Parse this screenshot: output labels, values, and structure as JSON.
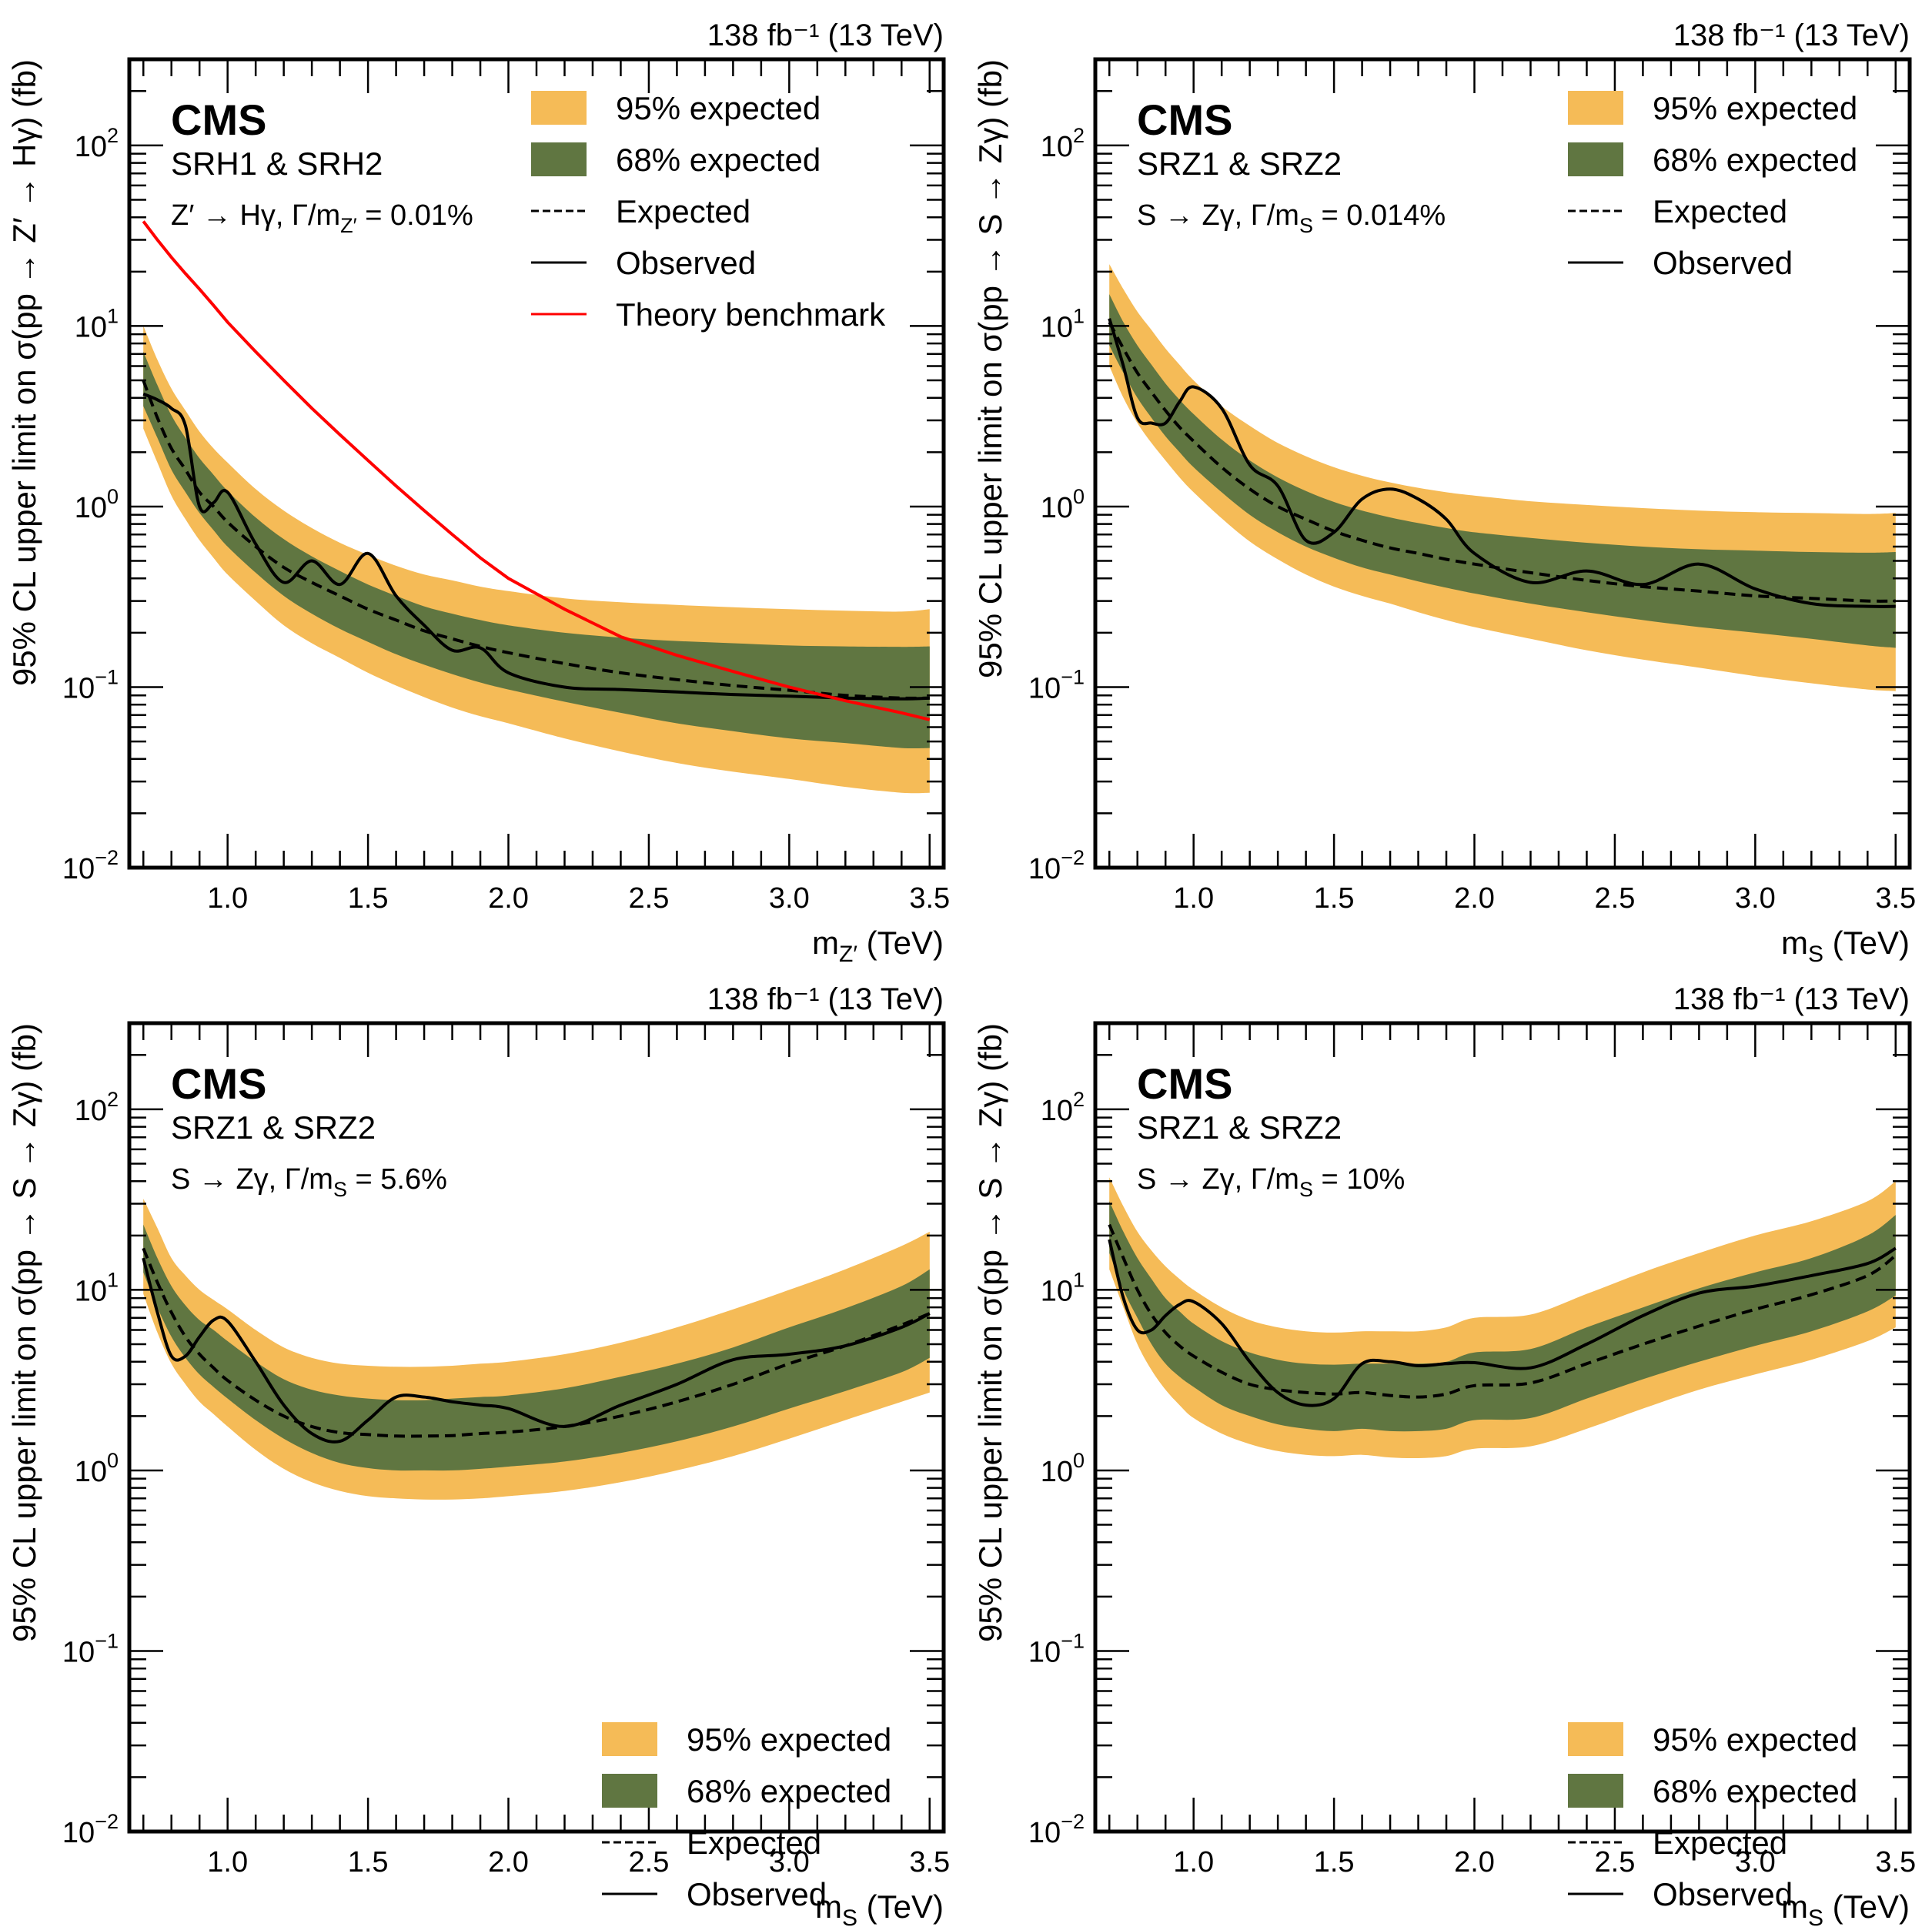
{
  "figure": {
    "colors": {
      "band95": "#F5BB57",
      "band68": "#607641",
      "expected": "#000000",
      "observed": "#000000",
      "theory": "#FF0000"
    }
  },
  "chart_data": [
    {
      "id": "p1",
      "type": "line",
      "title": "CMS",
      "lumi_label": "138 fb⁻¹ (13 TeV)",
      "subtitle": "SRH1 & SRH2",
      "process_label": "Z′ → Hγ,  Γ/m_Z′ = 0.01%",
      "process_parts": {
        "pre": "Z′ → Hγ,  Γ/m",
        "sub": "Z′",
        "post": " = 0.01%"
      },
      "xlabel": {
        "main": "m",
        "sub": "Z′",
        "unit": " (TeV)"
      },
      "ylabel": "95% CL upper limit on σ(pp → Z′ → Hγ) (fb)",
      "xlim": [
        0.65,
        3.55
      ],
      "ylim": [
        0.01,
        300
      ],
      "yscale": "log",
      "xticks": [
        "1.0",
        "1.5",
        "2.0",
        "2.5",
        "3.0",
        "3.5"
      ],
      "yticks": [
        {
          "base": "10",
          "exp": "−2"
        },
        {
          "base": "10",
          "exp": "−1"
        },
        {
          "base": "10",
          "exp": "0"
        },
        {
          "base": "10",
          "exp": "1"
        },
        {
          "base": "10",
          "exp": "2"
        }
      ],
      "legend_position": "top-right",
      "legend": [
        "95% expected",
        "68% expected",
        "Expected",
        "Observed",
        "Theory benchmark"
      ],
      "x": [
        0.7,
        0.75,
        0.8,
        0.85,
        0.9,
        0.95,
        1.0,
        1.1,
        1.2,
        1.3,
        1.4,
        1.5,
        1.6,
        1.7,
        1.8,
        1.9,
        2.0,
        2.2,
        2.4,
        2.6,
        2.8,
        3.0,
        3.2,
        3.4,
        3.5
      ],
      "series": [
        {
          "name": "95% upper",
          "values": [
            10,
            6.5,
            4.5,
            3.4,
            2.6,
            2.1,
            1.75,
            1.25,
            0.95,
            0.76,
            0.63,
            0.54,
            0.47,
            0.42,
            0.39,
            0.36,
            0.34,
            0.31,
            0.295,
            0.285,
            0.277,
            0.27,
            0.265,
            0.262,
            0.27
          ]
        },
        {
          "name": "68% upper",
          "values": [
            7.2,
            4.7,
            3.2,
            2.4,
            1.85,
            1.5,
            1.22,
            0.87,
            0.66,
            0.53,
            0.44,
            0.37,
            0.32,
            0.28,
            0.255,
            0.235,
            0.22,
            0.2,
            0.188,
            0.18,
            0.175,
            0.17,
            0.168,
            0.167,
            0.168
          ]
        },
        {
          "name": "68% lower",
          "values": [
            3.6,
            2.4,
            1.6,
            1.2,
            0.92,
            0.74,
            0.6,
            0.43,
            0.32,
            0.255,
            0.21,
            0.178,
            0.152,
            0.133,
            0.118,
            0.106,
            0.097,
            0.083,
            0.072,
            0.063,
            0.057,
            0.052,
            0.049,
            0.046,
            0.046
          ]
        },
        {
          "name": "95% lower",
          "values": [
            2.7,
            1.75,
            1.15,
            0.85,
            0.65,
            0.52,
            0.42,
            0.3,
            0.22,
            0.175,
            0.145,
            0.12,
            0.102,
            0.088,
            0.077,
            0.069,
            0.063,
            0.052,
            0.044,
            0.038,
            0.034,
            0.031,
            0.028,
            0.026,
            0.026
          ]
        },
        {
          "name": "Expected",
          "values": [
            5.0,
            3.1,
            2.1,
            1.6,
            1.2,
            1.0,
            0.82,
            0.6,
            0.46,
            0.38,
            0.32,
            0.27,
            0.235,
            0.205,
            0.185,
            0.168,
            0.155,
            0.135,
            0.12,
            0.11,
            0.102,
            0.096,
            0.09,
            0.087,
            0.087
          ]
        },
        {
          "name": "Observed",
          "values": [
            4.2,
            3.9,
            3.5,
            2.8,
            1.0,
            1.05,
            1.2,
            0.62,
            0.38,
            0.5,
            0.37,
            0.55,
            0.32,
            0.22,
            0.16,
            0.165,
            0.12,
            0.1,
            0.097,
            0.094,
            0.091,
            0.089,
            0.087,
            0.086,
            0.087
          ]
        },
        {
          "name": "Theory benchmark",
          "values": [
            38,
            30,
            24,
            19.5,
            16,
            13,
            10.5,
            7.2,
            5.0,
            3.5,
            2.5,
            1.8,
            1.3,
            0.95,
            0.7,
            0.52,
            0.4,
            0.27,
            0.19,
            0.15,
            0.122,
            0.1,
            0.084,
            0.072,
            0.066
          ]
        }
      ]
    },
    {
      "id": "p2",
      "type": "line",
      "title": "CMS",
      "lumi_label": "138 fb⁻¹ (13 TeV)",
      "subtitle": "SRZ1 & SRZ2",
      "process_label": "S → Zγ,  Γ/m_S = 0.014%",
      "process_parts": {
        "pre": "S → Zγ,  Γ/m",
        "sub": "S",
        "post": " = 0.014%"
      },
      "xlabel": {
        "main": "m",
        "sub": "S",
        "unit": " (TeV)"
      },
      "ylabel": "95% CL upper limit on σ(pp → S → Zγ) (fb)",
      "xlim": [
        0.65,
        3.55
      ],
      "ylim": [
        0.01,
        300
      ],
      "yscale": "log",
      "xticks": [
        "1.0",
        "1.5",
        "2.0",
        "2.5",
        "3.0",
        "3.5"
      ],
      "yticks": [
        {
          "base": "10",
          "exp": "−2"
        },
        {
          "base": "10",
          "exp": "−1"
        },
        {
          "base": "10",
          "exp": "0"
        },
        {
          "base": "10",
          "exp": "1"
        },
        {
          "base": "10",
          "exp": "2"
        }
      ],
      "legend_position": "top-right",
      "legend": [
        "95% expected",
        "68% expected",
        "Expected",
        "Observed"
      ],
      "x": [
        0.7,
        0.75,
        0.8,
        0.85,
        0.9,
        0.95,
        1.0,
        1.1,
        1.2,
        1.3,
        1.4,
        1.5,
        1.6,
        1.7,
        1.8,
        1.9,
        2.0,
        2.2,
        2.4,
        2.6,
        2.8,
        3.0,
        3.2,
        3.4,
        3.5
      ],
      "series": [
        {
          "name": "95% upper",
          "values": [
            22,
            16,
            12,
            9.5,
            7.5,
            6.1,
            5.0,
            3.6,
            2.8,
            2.25,
            1.9,
            1.65,
            1.48,
            1.36,
            1.27,
            1.2,
            1.15,
            1.07,
            1.02,
            0.98,
            0.95,
            0.93,
            0.92,
            0.91,
            0.92
          ]
        },
        {
          "name": "68% upper",
          "values": [
            15,
            10.5,
            7.8,
            6.1,
            4.8,
            3.9,
            3.25,
            2.35,
            1.8,
            1.45,
            1.22,
            1.06,
            0.95,
            0.87,
            0.81,
            0.76,
            0.72,
            0.67,
            0.63,
            0.6,
            0.58,
            0.57,
            0.56,
            0.555,
            0.56
          ]
        },
        {
          "name": "68% lower",
          "values": [
            7.8,
            5.5,
            4.0,
            3.1,
            2.45,
            2.0,
            1.65,
            1.2,
            0.9,
            0.72,
            0.6,
            0.52,
            0.46,
            0.42,
            0.385,
            0.355,
            0.33,
            0.29,
            0.26,
            0.235,
            0.215,
            0.2,
            0.185,
            0.17,
            0.165
          ]
        },
        {
          "name": "95% lower",
          "values": [
            6.0,
            4.0,
            2.9,
            2.25,
            1.8,
            1.45,
            1.2,
            0.86,
            0.64,
            0.51,
            0.42,
            0.36,
            0.32,
            0.29,
            0.26,
            0.235,
            0.215,
            0.185,
            0.16,
            0.142,
            0.128,
            0.115,
            0.105,
            0.097,
            0.095
          ]
        },
        {
          "name": "Expected",
          "values": [
            10.5,
            7.5,
            5.5,
            4.3,
            3.4,
            2.75,
            2.3,
            1.65,
            1.25,
            1.0,
            0.85,
            0.73,
            0.65,
            0.59,
            0.55,
            0.51,
            0.48,
            0.43,
            0.39,
            0.36,
            0.34,
            0.32,
            0.31,
            0.3,
            0.3
          ]
        },
        {
          "name": "Observed",
          "values": [
            11,
            6.0,
            3.1,
            2.9,
            2.9,
            3.8,
            4.6,
            3.5,
            1.7,
            1.3,
            0.65,
            0.72,
            1.1,
            1.25,
            1.1,
            0.85,
            0.55,
            0.38,
            0.44,
            0.37,
            0.48,
            0.35,
            0.29,
            0.28,
            0.28
          ]
        }
      ]
    },
    {
      "id": "p3",
      "type": "line",
      "title": "CMS",
      "lumi_label": "138 fb⁻¹ (13 TeV)",
      "subtitle": "SRZ1 & SRZ2",
      "process_label": "S → Zγ,  Γ/m_S = 5.6%",
      "process_parts": {
        "pre": "S → Zγ,  Γ/m",
        "sub": "S",
        "post": " = 5.6%"
      },
      "xlabel": {
        "main": "m",
        "sub": "S",
        "unit": " (TeV)"
      },
      "ylabel": "95% CL upper limit on σ(pp → S → Zγ) (fb)",
      "xlim": [
        0.65,
        3.55
      ],
      "ylim": [
        0.01,
        300
      ],
      "yscale": "log",
      "xticks": [
        "1.0",
        "1.5",
        "2.0",
        "2.5",
        "3.0",
        "3.5"
      ],
      "yticks": [
        {
          "base": "10",
          "exp": "−2"
        },
        {
          "base": "10",
          "exp": "−1"
        },
        {
          "base": "10",
          "exp": "0"
        },
        {
          "base": "10",
          "exp": "1"
        },
        {
          "base": "10",
          "exp": "2"
        }
      ],
      "legend_position": "bottom-right",
      "legend": [
        "95% expected",
        "68% expected",
        "Expected",
        "Observed"
      ],
      "x": [
        0.7,
        0.75,
        0.8,
        0.85,
        0.9,
        0.95,
        1.0,
        1.1,
        1.2,
        1.3,
        1.4,
        1.5,
        1.6,
        1.7,
        1.8,
        1.9,
        2.0,
        2.2,
        2.4,
        2.6,
        2.8,
        3.0,
        3.2,
        3.4,
        3.5
      ],
      "series": [
        {
          "name": "95% upper",
          "values": [
            32,
            22,
            15,
            12,
            10,
            8.8,
            7.8,
            6.0,
            4.8,
            4.2,
            3.9,
            3.8,
            3.75,
            3.75,
            3.8,
            3.9,
            4.0,
            4.4,
            5.1,
            6.2,
            7.8,
            10,
            13,
            17.5,
            21
          ]
        },
        {
          "name": "68% upper",
          "values": [
            23,
            15,
            10.5,
            8.2,
            6.8,
            6.0,
            5.2,
            4.0,
            3.2,
            2.8,
            2.6,
            2.5,
            2.45,
            2.45,
            2.5,
            2.55,
            2.6,
            2.85,
            3.3,
            3.9,
            4.8,
            6.2,
            7.9,
            10.5,
            13
          ]
        },
        {
          "name": "68% lower",
          "values": [
            12.5,
            8.0,
            5.5,
            4.2,
            3.4,
            2.9,
            2.5,
            1.9,
            1.5,
            1.25,
            1.1,
            1.03,
            1.0,
            1.0,
            1.0,
            1.02,
            1.05,
            1.12,
            1.25,
            1.45,
            1.75,
            2.2,
            2.75,
            3.5,
            4.2
          ]
        },
        {
          "name": "95% lower",
          "values": [
            9.5,
            5.8,
            3.9,
            3.0,
            2.4,
            2.05,
            1.75,
            1.3,
            1.02,
            0.86,
            0.77,
            0.72,
            0.7,
            0.69,
            0.69,
            0.7,
            0.72,
            0.77,
            0.86,
            1.0,
            1.2,
            1.5,
            1.9,
            2.4,
            2.7
          ]
        },
        {
          "name": "Expected",
          "values": [
            17,
            11,
            7.5,
            5.5,
            4.4,
            3.7,
            3.15,
            2.45,
            2.0,
            1.75,
            1.62,
            1.58,
            1.55,
            1.55,
            1.56,
            1.6,
            1.63,
            1.75,
            2.0,
            2.4,
            3.0,
            3.9,
            4.9,
            6.4,
            7.4
          ]
        },
        {
          "name": "Observed",
          "values": [
            15,
            7.5,
            4.3,
            4.3,
            5.5,
            6.8,
            6.7,
            4.0,
            2.3,
            1.6,
            1.45,
            1.9,
            2.55,
            2.55,
            2.4,
            2.3,
            2.2,
            1.75,
            2.3,
            3.0,
            4.1,
            4.4,
            4.9,
            6.2,
            7.4
          ]
        }
      ]
    },
    {
      "id": "p4",
      "type": "line",
      "title": "CMS",
      "lumi_label": "138 fb⁻¹ (13 TeV)",
      "subtitle": "SRZ1 & SRZ2",
      "process_label": "S → Zγ,  Γ/m_S = 10%",
      "process_parts": {
        "pre": "S → Zγ,  Γ/m",
        "sub": "S",
        "post": " = 10%"
      },
      "xlabel": {
        "main": "m",
        "sub": "S",
        "unit": " (TeV)"
      },
      "ylabel": "95% CL upper limit on σ(pp → S → Zγ) (fb)",
      "xlim": [
        0.65,
        3.55
      ],
      "ylim": [
        0.01,
        300
      ],
      "yscale": "log",
      "xticks": [
        "1.0",
        "1.5",
        "2.0",
        "2.5",
        "3.0",
        "3.5"
      ],
      "yticks": [
        {
          "base": "10",
          "exp": "−2"
        },
        {
          "base": "10",
          "exp": "−1"
        },
        {
          "base": "10",
          "exp": "0"
        },
        {
          "base": "10",
          "exp": "1"
        },
        {
          "base": "10",
          "exp": "2"
        }
      ],
      "legend_position": "bottom-right",
      "legend": [
        "95% expected",
        "68% expected",
        "Expected",
        "Observed"
      ],
      "x": [
        0.7,
        0.75,
        0.8,
        0.85,
        0.9,
        0.95,
        1.0,
        1.1,
        1.2,
        1.3,
        1.4,
        1.5,
        1.6,
        1.7,
        1.8,
        1.9,
        2.0,
        2.2,
        2.4,
        2.6,
        2.8,
        3.0,
        3.2,
        3.4,
        3.5
      ],
      "series": [
        {
          "name": "95% upper",
          "values": [
            42,
            29,
            21,
            16.5,
            13.5,
            11.5,
            10,
            8.0,
            6.8,
            6.2,
            5.9,
            5.8,
            5.9,
            5.9,
            5.9,
            6.2,
            7.0,
            7.3,
            9.5,
            12.5,
            16,
            20,
            24,
            31,
            40
          ]
        },
        {
          "name": "68% upper",
          "values": [
            31,
            21,
            15,
            11.5,
            9.0,
            7.6,
            6.5,
            5.2,
            4.5,
            4.1,
            3.9,
            3.85,
            3.9,
            3.9,
            3.9,
            4.0,
            4.5,
            4.7,
            6.2,
            8.0,
            10.2,
            12.5,
            15,
            20,
            26
          ]
        },
        {
          "name": "68% lower",
          "values": [
            16,
            10,
            7.0,
            5.0,
            3.9,
            3.3,
            2.9,
            2.3,
            2.0,
            1.8,
            1.7,
            1.65,
            1.7,
            1.65,
            1.65,
            1.7,
            1.9,
            1.95,
            2.5,
            3.2,
            4.0,
            4.9,
            5.9,
            7.6,
            9.3
          ]
        },
        {
          "name": "95% lower",
          "values": [
            13,
            8.0,
            5.0,
            3.6,
            2.8,
            2.3,
            1.95,
            1.6,
            1.4,
            1.28,
            1.22,
            1.2,
            1.22,
            1.18,
            1.17,
            1.2,
            1.32,
            1.36,
            1.7,
            2.2,
            2.8,
            3.4,
            4.1,
            5.2,
            6.2
          ]
        },
        {
          "name": "Expected",
          "values": [
            23,
            15,
            10,
            7.3,
            5.8,
            4.9,
            4.3,
            3.5,
            3.0,
            2.8,
            2.7,
            2.65,
            2.7,
            2.6,
            2.55,
            2.65,
            2.95,
            3.05,
            3.9,
            5.0,
            6.3,
            7.8,
            9.4,
            12,
            15.5
          ]
        },
        {
          "name": "Observed",
          "values": [
            19,
            9.0,
            6.0,
            6.0,
            7.2,
            8.3,
            8.6,
            6.5,
            4.0,
            2.7,
            2.3,
            2.5,
            3.9,
            4.0,
            3.8,
            3.9,
            3.95,
            3.7,
            5.0,
            7.2,
            9.6,
            10.5,
            12,
            14,
            17
          ]
        }
      ]
    }
  ]
}
